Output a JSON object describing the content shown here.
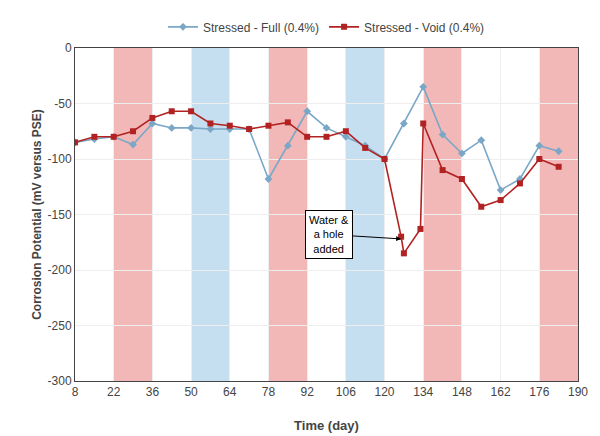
{
  "chart_data": {
    "type": "line",
    "xlabel": "Time (day)",
    "ylabel": "Corrosion Potential (mV versus PSE)",
    "xlim": [
      8,
      190
    ],
    "ylim": [
      -300,
      0
    ],
    "xticks": [
      8,
      22,
      36,
      50,
      64,
      78,
      92,
      106,
      120,
      134,
      148,
      162,
      176,
      190
    ],
    "yticks": [
      0,
      -50,
      -100,
      -150,
      -200,
      -250,
      -300
    ],
    "grid": true,
    "legend": "top",
    "series": [
      {
        "name": "Stressed - Full (0.4%)",
        "color": "#7BA7C7",
        "marker": "diamond",
        "line_style": "solid",
        "x": [
          8,
          15,
          22,
          29,
          36,
          43,
          50,
          57,
          64,
          71,
          78,
          85,
          92,
          99,
          106,
          113,
          120,
          127,
          134,
          141,
          148,
          155,
          162,
          169,
          176,
          183
        ],
        "values": [
          -85,
          -82,
          -80,
          -87,
          -68,
          -72,
          -72,
          -73,
          -73,
          -73,
          -118,
          -88,
          -57,
          -72,
          -80,
          -88,
          -100,
          -68,
          -35,
          -78,
          -95,
          -83,
          -128,
          -118,
          -88,
          -93
        ]
      },
      {
        "name": "Stressed - Void (0.4%)",
        "color": "#B22222",
        "marker": "square",
        "line_style": "solid",
        "x": [
          8,
          15,
          22,
          29,
          36,
          43,
          50,
          57,
          64,
          71,
          78,
          85,
          92,
          99,
          106,
          113,
          120,
          126,
          127,
          133,
          134,
          141,
          148,
          155,
          162,
          169,
          176,
          183
        ],
        "values": [
          -85,
          -80,
          -80,
          -75,
          -63,
          -57,
          -57,
          -68,
          -70,
          -73,
          -70,
          -67,
          -80,
          -80,
          -75,
          -90,
          -100,
          -170,
          -185,
          -163,
          -68,
          -110,
          -118,
          -143,
          -137,
          -122,
          -100,
          -107
        ]
      }
    ],
    "shaded_bands": [
      {
        "color": "#F2B8B8",
        "ranges": [
          [
            22,
            36
          ],
          [
            78,
            92
          ],
          [
            134,
            148
          ],
          [
            176,
            190
          ]
        ]
      },
      {
        "color": "#C5DFF0",
        "ranges": [
          [
            50,
            64
          ],
          [
            106,
            120
          ]
        ]
      }
    ],
    "annotations": [
      {
        "text": "Water &\na hole\nadded",
        "x": 100,
        "y": -168,
        "arrow_x": 126,
        "arrow_y": -172
      }
    ]
  }
}
